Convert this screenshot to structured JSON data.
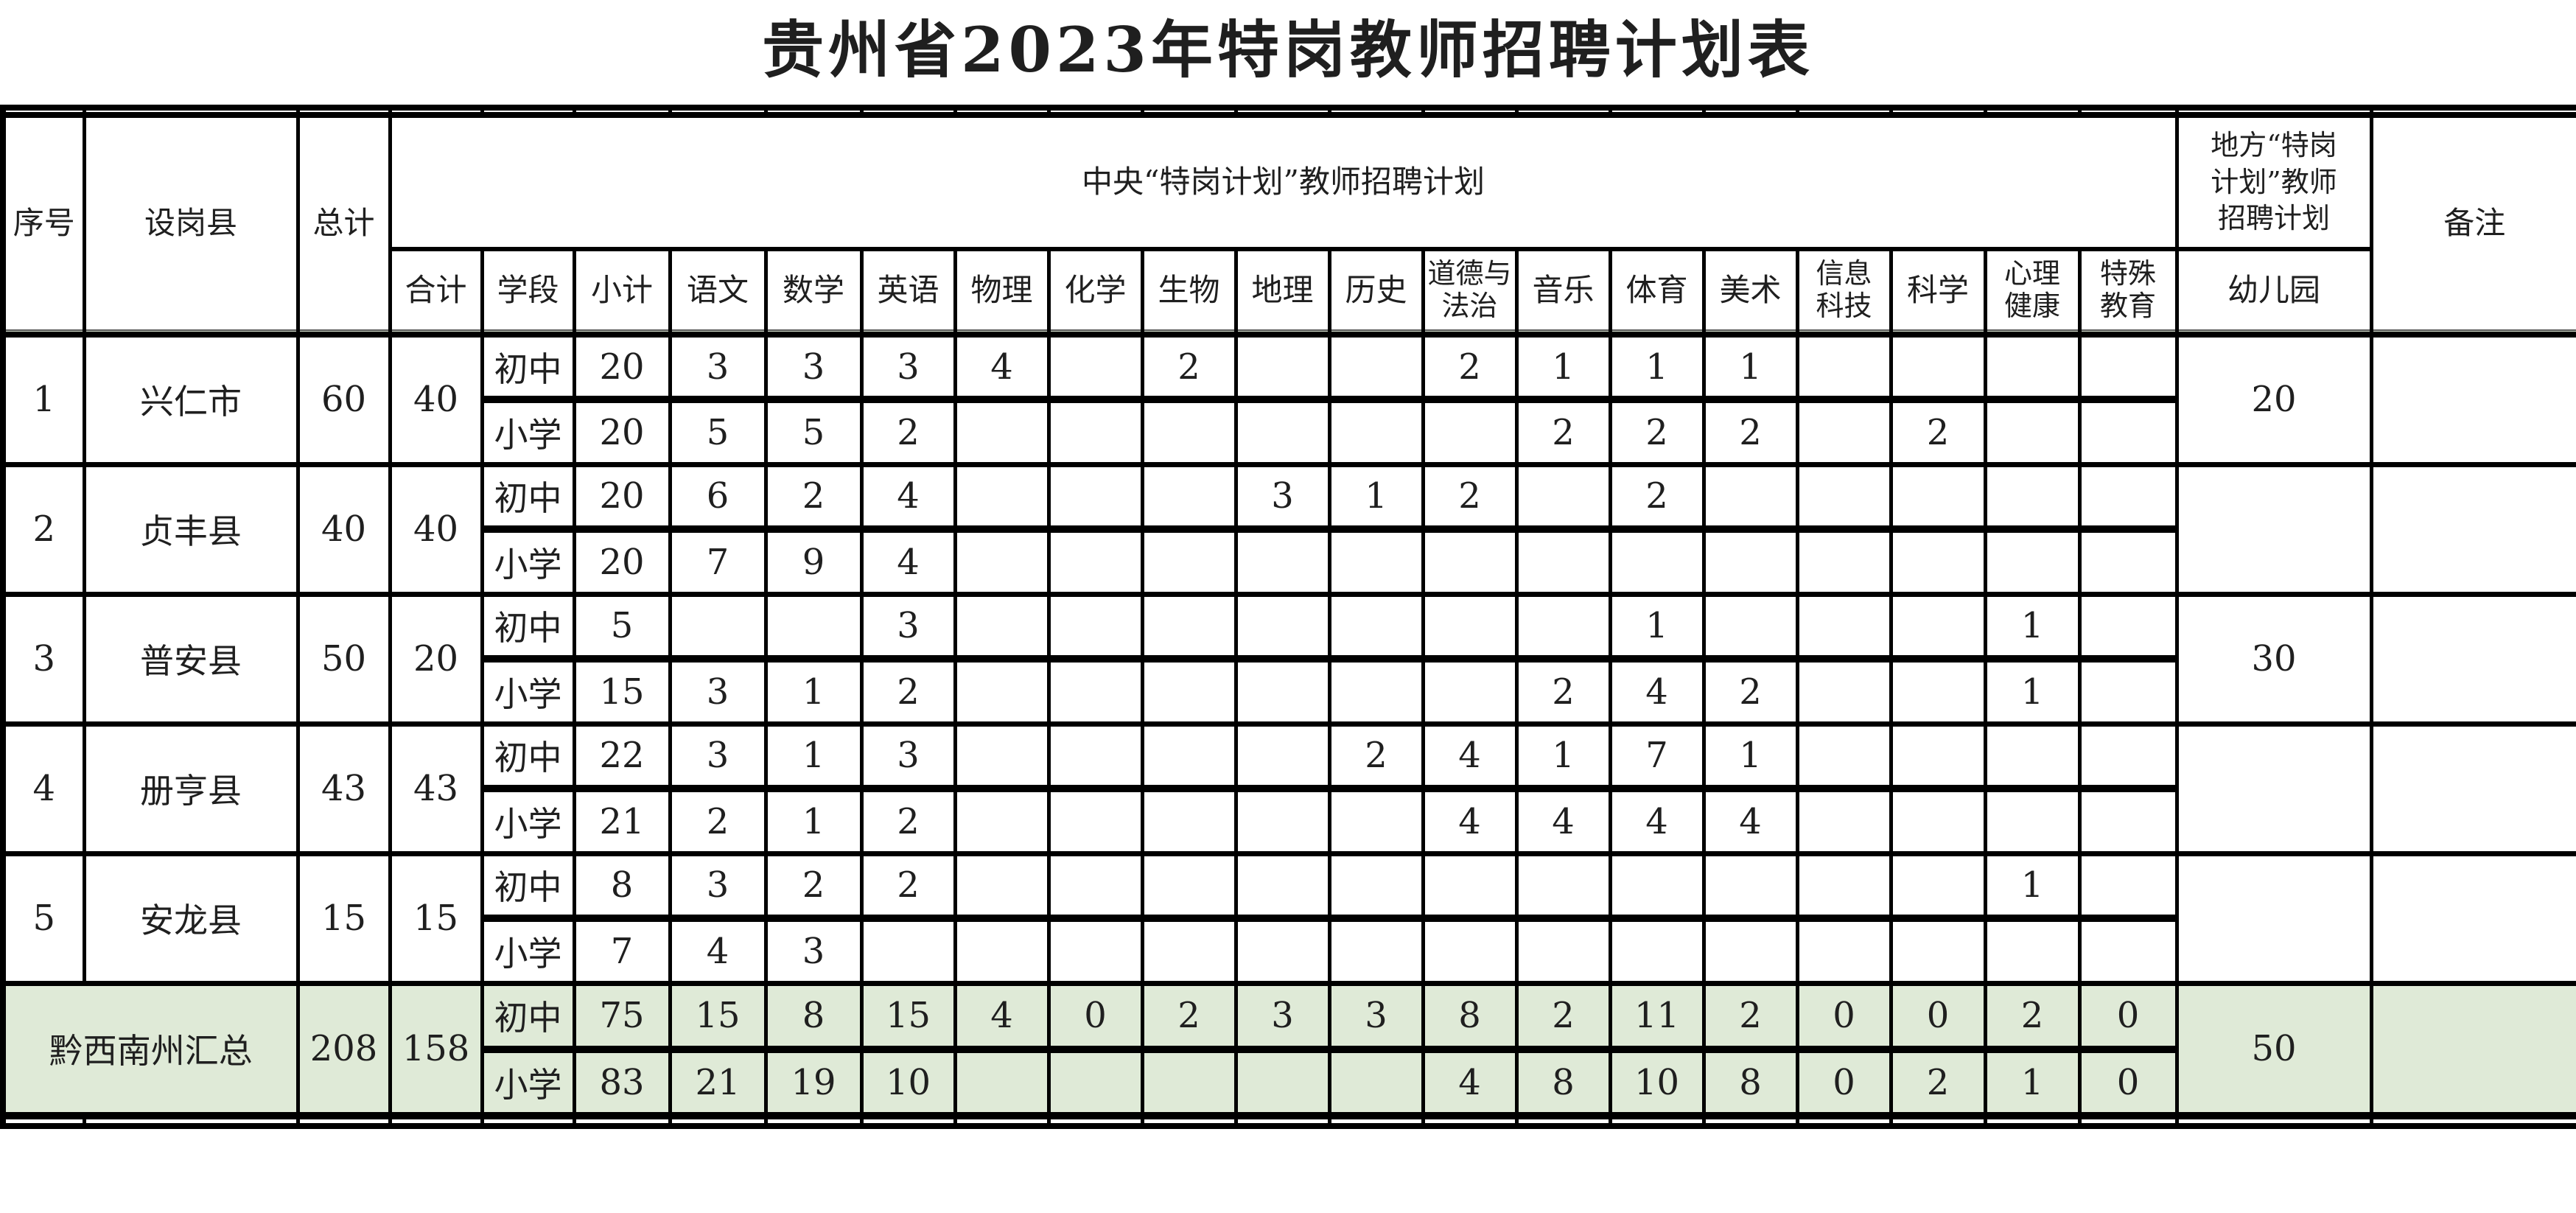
{
  "title": "贵州省2023年特岗教师招聘计划表",
  "header": {
    "serial": "序号",
    "county": "设岗县",
    "grand_total": "总计",
    "central_plan": "中央“特岗计划”教师招聘计划",
    "local_plan": "地方“特岗\n计划”教师\n招聘计划",
    "remark": "备注",
    "subtotal": "合计",
    "stage": "学段",
    "stage_subtotal": "小计",
    "subjects": [
      "语文",
      "数学",
      "英语",
      "物理",
      "化学",
      "生物",
      "地理",
      "历史",
      "道德与\n法治",
      "音乐",
      "体育",
      "美术",
      "信息\n科技",
      "科学",
      "心理\n健康",
      "特殊\n教育"
    ],
    "kindergarten": "幼儿园"
  },
  "stages": {
    "junior": "初中",
    "primary": "小学"
  },
  "rows": [
    {
      "no": "1",
      "county": "兴仁市",
      "total": "60",
      "central_total": "40",
      "junior": {
        "subtotal": "20",
        "values": [
          "3",
          "3",
          "3",
          "4",
          "",
          "2",
          "",
          "",
          "2",
          "1",
          "1",
          "1",
          "",
          "",
          "",
          ""
        ]
      },
      "primary": {
        "subtotal": "20",
        "values": [
          "5",
          "5",
          "2",
          "",
          "",
          "",
          "",
          "",
          "",
          "2",
          "2",
          "2",
          "",
          "2",
          "",
          ""
        ]
      },
      "kindergarten": "20",
      "remark": ""
    },
    {
      "no": "2",
      "county": "贞丰县",
      "total": "40",
      "central_total": "40",
      "junior": {
        "subtotal": "20",
        "values": [
          "6",
          "2",
          "4",
          "",
          "",
          "",
          "3",
          "1",
          "2",
          "",
          "2",
          "",
          "",
          "",
          "",
          ""
        ]
      },
      "primary": {
        "subtotal": "20",
        "values": [
          "7",
          "9",
          "4",
          "",
          "",
          "",
          "",
          "",
          "",
          "",
          "",
          "",
          "",
          "",
          "",
          ""
        ]
      },
      "kindergarten": "",
      "remark": ""
    },
    {
      "no": "3",
      "county": "普安县",
      "total": "50",
      "central_total": "20",
      "junior": {
        "subtotal": "5",
        "values": [
          "",
          "",
          "3",
          "",
          "",
          "",
          "",
          "",
          "",
          "",
          "1",
          "",
          "",
          "",
          "1",
          ""
        ]
      },
      "primary": {
        "subtotal": "15",
        "values": [
          "3",
          "1",
          "2",
          "",
          "",
          "",
          "",
          "",
          "",
          "2",
          "4",
          "2",
          "",
          "",
          "1",
          ""
        ]
      },
      "kindergarten": "30",
      "remark": ""
    },
    {
      "no": "4",
      "county": "册亨县",
      "total": "43",
      "central_total": "43",
      "junior": {
        "subtotal": "22",
        "values": [
          "3",
          "1",
          "3",
          "",
          "",
          "",
          "",
          "2",
          "4",
          "1",
          "7",
          "1",
          "",
          "",
          "",
          ""
        ]
      },
      "primary": {
        "subtotal": "21",
        "values": [
          "2",
          "1",
          "2",
          "",
          "",
          "",
          "",
          "",
          "4",
          "4",
          "4",
          "4",
          "",
          "",
          "",
          ""
        ]
      },
      "kindergarten": "",
      "remark": ""
    },
    {
      "no": "5",
      "county": "安龙县",
      "total": "15",
      "central_total": "15",
      "junior": {
        "subtotal": "8",
        "values": [
          "3",
          "2",
          "2",
          "",
          "",
          "",
          "",
          "",
          "",
          "",
          "",
          "",
          "",
          "",
          "1",
          ""
        ]
      },
      "primary": {
        "subtotal": "7",
        "values": [
          "4",
          "3",
          "",
          "",
          "",
          "",
          "",
          "",
          "",
          "",
          "",
          "",
          "",
          "",
          "",
          ""
        ]
      },
      "kindergarten": "",
      "remark": ""
    }
  ],
  "summary": {
    "name": "黔西南州汇总",
    "total": "208",
    "central_total": "158",
    "junior": {
      "subtotal": "75",
      "values": [
        "15",
        "8",
        "15",
        "4",
        "0",
        "2",
        "3",
        "3",
        "8",
        "2",
        "11",
        "2",
        "0",
        "0",
        "2",
        "0"
      ]
    },
    "primary": {
      "subtotal": "83",
      "values": [
        "21",
        "19",
        "10",
        "",
        "",
        "",
        "",
        "",
        "4",
        "8",
        "10",
        "8",
        "0",
        "2",
        "1",
        "0"
      ]
    },
    "kindergarten": "50",
    "remark": ""
  },
  "colors": {
    "summary_row_bg": "#dfead7",
    "border": "#000000",
    "text": "#1f1f1f"
  }
}
